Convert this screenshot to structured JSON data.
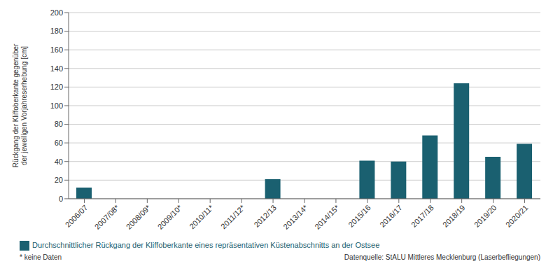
{
  "chart_data": {
    "type": "bar",
    "categories": [
      "2006/07",
      "2007/08*",
      "2008/09*",
      "2009/10*",
      "2010/11*",
      "2011/12*",
      "2012/13",
      "2013/14*",
      "2014/15*",
      "2015/16",
      "2016/17",
      "2017/18",
      "2018/19",
      "2019/20",
      "2020/21"
    ],
    "series": [
      {
        "name": "Durchschnittlicher Rückgang der Kliffoberkante eines repräsentativen Küstenabschnitts an der Ostsee",
        "color": "#1a6070",
        "values": [
          12,
          0,
          0,
          0,
          0,
          0,
          21,
          0,
          0,
          41,
          40,
          68,
          124,
          45,
          59
        ]
      }
    ],
    "ylabel": "Rückgang der Kliffoberkante gegenüber\nder jeweiligen Vorjahreserhebung  [cm]",
    "ylim": [
      0,
      200
    ],
    "yticks": [
      0,
      20,
      40,
      60,
      80,
      100,
      120,
      140,
      160,
      180,
      200
    ],
    "grid": true,
    "legend": "lower left",
    "annotations": [
      "* keine Daten",
      "Datenquelle: StALU Mittleres Mecklenburg (Laserbefliegungen)"
    ]
  }
}
